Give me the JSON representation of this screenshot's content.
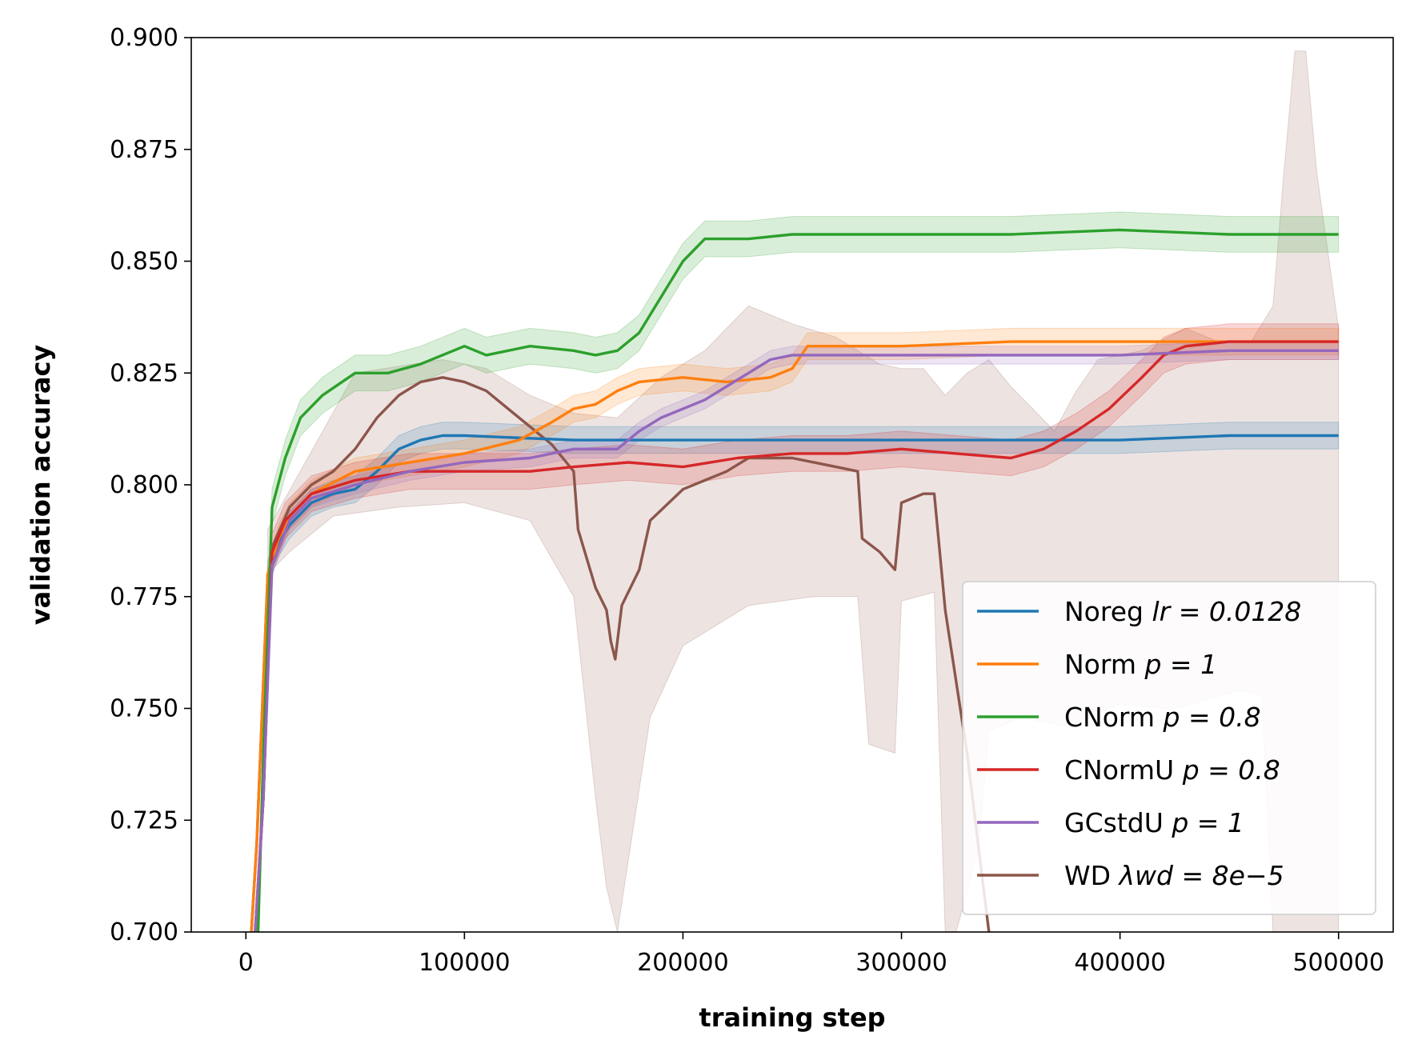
{
  "chart_data": {
    "type": "line",
    "xlabel": "training step",
    "ylabel": "validation accuracy",
    "xlim": [
      -25000,
      525000
    ],
    "ylim": [
      0.7,
      0.9
    ],
    "x_ticks": [
      0,
      100000,
      200000,
      300000,
      400000,
      500000
    ],
    "x_tick_labels": [
      "0",
      "100000",
      "200000",
      "300000",
      "400000",
      "500000"
    ],
    "y_ticks": [
      0.7,
      0.725,
      0.75,
      0.775,
      0.8,
      0.825,
      0.85,
      0.875,
      0.9
    ],
    "y_tick_labels": [
      "0.700",
      "0.725",
      "0.750",
      "0.775",
      "0.800",
      "0.825",
      "0.850",
      "0.875",
      "0.900"
    ],
    "grid": false,
    "legend_position": "lower-right",
    "series": [
      {
        "name": "Noreg lr = 0.0128",
        "legend_label": "Noreg",
        "legend_math": "lr = 0.0128",
        "color": "#1f77b4",
        "band_halfwidth": 0.003,
        "points": [
          [
            0,
            0.68
          ],
          [
            5000,
            0.72
          ],
          [
            10000,
            0.78
          ],
          [
            15000,
            0.787
          ],
          [
            20000,
            0.791
          ],
          [
            30000,
            0.796
          ],
          [
            40000,
            0.798
          ],
          [
            50000,
            0.799
          ],
          [
            60000,
            0.803
          ],
          [
            70000,
            0.808
          ],
          [
            80000,
            0.81
          ],
          [
            90000,
            0.811
          ],
          [
            100000,
            0.811
          ],
          [
            150000,
            0.81
          ],
          [
            200000,
            0.81
          ],
          [
            250000,
            0.81
          ],
          [
            300000,
            0.81
          ],
          [
            350000,
            0.81
          ],
          [
            400000,
            0.81
          ],
          [
            450000,
            0.811
          ],
          [
            500000,
            0.811
          ]
        ]
      },
      {
        "name": "Norm p = 1",
        "legend_label": "Norm",
        "legend_math": "p = 1",
        "color": "#ff7f0e",
        "band_halfwidth": 0.003,
        "points": [
          [
            0,
            0.68
          ],
          [
            5000,
            0.72
          ],
          [
            10000,
            0.78
          ],
          [
            15000,
            0.788
          ],
          [
            20000,
            0.793
          ],
          [
            30000,
            0.798
          ],
          [
            50000,
            0.803
          ],
          [
            75000,
            0.805
          ],
          [
            100000,
            0.807
          ],
          [
            125000,
            0.81
          ],
          [
            140000,
            0.814
          ],
          [
            150000,
            0.817
          ],
          [
            160000,
            0.818
          ],
          [
            170000,
            0.821
          ],
          [
            180000,
            0.823
          ],
          [
            200000,
            0.824
          ],
          [
            220000,
            0.823
          ],
          [
            240000,
            0.824
          ],
          [
            250000,
            0.826
          ],
          [
            257000,
            0.831
          ],
          [
            270000,
            0.831
          ],
          [
            300000,
            0.831
          ],
          [
            350000,
            0.832
          ],
          [
            400000,
            0.832
          ],
          [
            450000,
            0.832
          ],
          [
            500000,
            0.832
          ]
        ]
      },
      {
        "name": "CNorm p = 0.8",
        "legend_label": "CNorm",
        "legend_math": "p = 0.8",
        "color": "#2ca02c",
        "band_halfwidth": 0.004,
        "points": [
          [
            5000,
            0.69
          ],
          [
            8000,
            0.74
          ],
          [
            12000,
            0.795
          ],
          [
            18000,
            0.806
          ],
          [
            25000,
            0.815
          ],
          [
            35000,
            0.82
          ],
          [
            50000,
            0.825
          ],
          [
            65000,
            0.825
          ],
          [
            80000,
            0.827
          ],
          [
            100000,
            0.831
          ],
          [
            110000,
            0.829
          ],
          [
            130000,
            0.831
          ],
          [
            150000,
            0.83
          ],
          [
            160000,
            0.829
          ],
          [
            170000,
            0.83
          ],
          [
            180000,
            0.834
          ],
          [
            190000,
            0.842
          ],
          [
            200000,
            0.85
          ],
          [
            210000,
            0.855
          ],
          [
            230000,
            0.855
          ],
          [
            250000,
            0.856
          ],
          [
            300000,
            0.856
          ],
          [
            350000,
            0.856
          ],
          [
            400000,
            0.857
          ],
          [
            450000,
            0.856
          ],
          [
            500000,
            0.856
          ]
        ]
      },
      {
        "name": "CNormU p = 0.8",
        "legend_label": "CNormU",
        "legend_math": "p = 0.8",
        "color": "#d62728",
        "band_halfwidth": 0.004,
        "points": [
          [
            3000,
            0.69
          ],
          [
            8000,
            0.73
          ],
          [
            12000,
            0.785
          ],
          [
            18000,
            0.792
          ],
          [
            30000,
            0.798
          ],
          [
            50000,
            0.801
          ],
          [
            75000,
            0.803
          ],
          [
            100000,
            0.803
          ],
          [
            130000,
            0.803
          ],
          [
            150000,
            0.804
          ],
          [
            175000,
            0.805
          ],
          [
            200000,
            0.804
          ],
          [
            225000,
            0.806
          ],
          [
            250000,
            0.807
          ],
          [
            275000,
            0.807
          ],
          [
            300000,
            0.808
          ],
          [
            325000,
            0.807
          ],
          [
            350000,
            0.806
          ],
          [
            365000,
            0.808
          ],
          [
            380000,
            0.812
          ],
          [
            395000,
            0.817
          ],
          [
            410000,
            0.824
          ],
          [
            420000,
            0.829
          ],
          [
            430000,
            0.831
          ],
          [
            450000,
            0.832
          ],
          [
            470000,
            0.832
          ],
          [
            500000,
            0.832
          ]
        ]
      },
      {
        "name": "GCstdU p = 1",
        "legend_label": "GCstdU",
        "legend_math": "p = 1",
        "color": "#9467bd",
        "band_halfwidth": 0.002,
        "points": [
          [
            3000,
            0.69
          ],
          [
            8000,
            0.73
          ],
          [
            12000,
            0.782
          ],
          [
            20000,
            0.792
          ],
          [
            30000,
            0.797
          ],
          [
            50000,
            0.8
          ],
          [
            75000,
            0.803
          ],
          [
            100000,
            0.805
          ],
          [
            130000,
            0.806
          ],
          [
            150000,
            0.808
          ],
          [
            170000,
            0.808
          ],
          [
            180000,
            0.812
          ],
          [
            190000,
            0.815
          ],
          [
            200000,
            0.817
          ],
          [
            210000,
            0.819
          ],
          [
            220000,
            0.822
          ],
          [
            230000,
            0.825
          ],
          [
            240000,
            0.828
          ],
          [
            250000,
            0.829
          ],
          [
            300000,
            0.829
          ],
          [
            350000,
            0.829
          ],
          [
            400000,
            0.829
          ],
          [
            450000,
            0.83
          ],
          [
            500000,
            0.83
          ]
        ]
      },
      {
        "name": "WD λ_wd = 8e^-5",
        "legend_label": "WD",
        "legend_math": "λwd = 8e−5",
        "color": "#8c564b",
        "band_halfwidth": 0.0,
        "points": [
          [
            3000,
            0.69
          ],
          [
            8000,
            0.73
          ],
          [
            12000,
            0.786
          ],
          [
            20000,
            0.795
          ],
          [
            30000,
            0.8
          ],
          [
            40000,
            0.803
          ],
          [
            50000,
            0.808
          ],
          [
            60000,
            0.815
          ],
          [
            70000,
            0.82
          ],
          [
            80000,
            0.823
          ],
          [
            90000,
            0.824
          ],
          [
            100000,
            0.823
          ],
          [
            110000,
            0.821
          ],
          [
            120000,
            0.817
          ],
          [
            130000,
            0.813
          ],
          [
            140000,
            0.809
          ],
          [
            150000,
            0.803
          ],
          [
            152000,
            0.79
          ],
          [
            160000,
            0.777
          ],
          [
            165000,
            0.772
          ],
          [
            167000,
            0.765
          ],
          [
            169000,
            0.761
          ],
          [
            172000,
            0.773
          ],
          [
            180000,
            0.781
          ],
          [
            185000,
            0.792
          ],
          [
            200000,
            0.799
          ],
          [
            220000,
            0.803
          ],
          [
            230000,
            0.806
          ],
          [
            250000,
            0.806
          ],
          [
            270000,
            0.804
          ],
          [
            280000,
            0.803
          ],
          [
            282000,
            0.788
          ],
          [
            290000,
            0.785
          ],
          [
            297000,
            0.781
          ],
          [
            300000,
            0.796
          ],
          [
            310000,
            0.798
          ],
          [
            315000,
            0.798
          ],
          [
            320000,
            0.772
          ],
          [
            330000,
            0.74
          ],
          [
            335000,
            0.72
          ],
          [
            340000,
            0.7
          ]
        ]
      }
    ],
    "wd_band": {
      "upper": [
        [
          10000,
          0.79
        ],
        [
          50000,
          0.825
        ],
        [
          90000,
          0.828
        ],
        [
          110000,
          0.826
        ],
        [
          130000,
          0.82
        ],
        [
          150000,
          0.816
        ],
        [
          170000,
          0.815
        ],
        [
          190000,
          0.824
        ],
        [
          210000,
          0.83
        ],
        [
          230000,
          0.84
        ],
        [
          250000,
          0.836
        ],
        [
          270000,
          0.833
        ],
        [
          280000,
          0.83
        ],
        [
          290000,
          0.827
        ],
        [
          300000,
          0.826
        ],
        [
          310000,
          0.826
        ],
        [
          320000,
          0.82
        ],
        [
          330000,
          0.825
        ],
        [
          340000,
          0.828
        ],
        [
          350000,
          0.822
        ],
        [
          370000,
          0.812
        ],
        [
          380000,
          0.821
        ],
        [
          390000,
          0.828
        ],
        [
          410000,
          0.83
        ],
        [
          430000,
          0.835
        ],
        [
          445000,
          0.832
        ],
        [
          460000,
          0.832
        ],
        [
          470000,
          0.84
        ],
        [
          475000,
          0.87
        ],
        [
          480000,
          0.897
        ],
        [
          485000,
          0.897
        ],
        [
          490000,
          0.87
        ],
        [
          500000,
          0.835
        ]
      ],
      "lower": [
        [
          500000,
          0.7
        ],
        [
          485000,
          0.7
        ],
        [
          470000,
          0.7
        ],
        [
          465000,
          0.753
        ],
        [
          455000,
          0.754
        ],
        [
          440000,
          0.752
        ],
        [
          425000,
          0.75
        ],
        [
          420000,
          0.75
        ],
        [
          400000,
          0.751
        ],
        [
          375000,
          0.746
        ],
        [
          355000,
          0.748
        ],
        [
          340000,
          0.745
        ],
        [
          335000,
          0.718
        ],
        [
          325000,
          0.7
        ],
        [
          320000,
          0.7
        ],
        [
          315000,
          0.776
        ],
        [
          300000,
          0.774
        ],
        [
          297000,
          0.74
        ],
        [
          285000,
          0.742
        ],
        [
          280000,
          0.775
        ],
        [
          260000,
          0.775
        ],
        [
          230000,
          0.773
        ],
        [
          200000,
          0.764
        ],
        [
          185000,
          0.748
        ],
        [
          170000,
          0.7
        ],
        [
          165000,
          0.71
        ],
        [
          160000,
          0.73
        ],
        [
          150000,
          0.775
        ],
        [
          130000,
          0.792
        ],
        [
          100000,
          0.796
        ],
        [
          70000,
          0.795
        ],
        [
          40000,
          0.793
        ],
        [
          20000,
          0.785
        ],
        [
          10000,
          0.78
        ]
      ]
    }
  }
}
